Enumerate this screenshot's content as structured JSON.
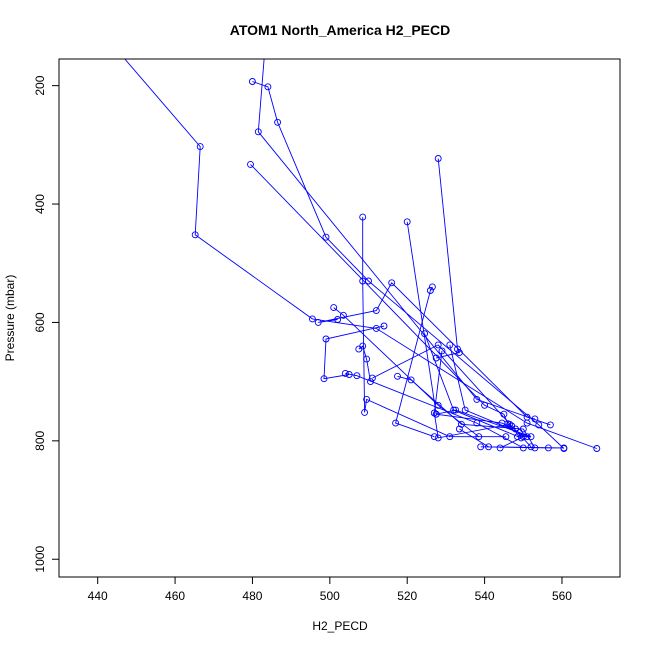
{
  "chart_data": {
    "type": "line",
    "title": "ATOM1 North_America H2_PECD",
    "xlabel": "H2_PECD",
    "ylabel": "Pressure (mbar)",
    "xlim": [
      430,
      575
    ],
    "ylim": [
      1030,
      155
    ],
    "y_reversed": true,
    "x_ticks": [
      440,
      460,
      480,
      500,
      520,
      540,
      560
    ],
    "y_ticks": [
      200,
      400,
      600,
      800,
      1000
    ],
    "grid": false,
    "line_color": "#0000ff",
    "series": [
      {
        "x": [
          447,
          466.5,
          465.2,
          495.5,
          512,
          551,
          569
        ],
        "y": [
          155,
          303,
          452,
          594,
          610,
          770,
          813
        ]
      },
      {
        "x": [
          480,
          484,
          486.5,
          499,
          510,
          554,
          560.5
        ],
        "y": [
          193,
          202,
          262,
          456,
          530,
          773,
          813
        ]
      },
      {
        "x": [
          483,
          481.5,
          538,
          557
        ],
        "y": [
          155,
          278,
          730,
          773
        ]
      },
      {
        "x": [
          479.5,
          540,
          545,
          546,
          550
        ],
        "y": [
          333,
          740,
          755,
          771,
          793
        ]
      },
      {
        "x": [
          508.5,
          508.5,
          509,
          509.5,
          531,
          545.5
        ],
        "y": [
          422,
          530,
          752,
          730,
          793,
          793
        ]
      },
      {
        "x": [
          520,
          527.5,
          544.5,
          548
        ],
        "y": [
          430,
          755,
          770,
          780
        ]
      },
      {
        "x": [
          528,
          533,
          533.5,
          527.5
        ],
        "y": [
          323,
          645,
          651,
          660
        ]
      },
      {
        "x": [
          507.5,
          508.5,
          509.5,
          510.5
        ],
        "y": [
          645,
          640,
          662,
          700
        ]
      },
      {
        "x": [
          501,
          503.5,
          528,
          538.5
        ],
        "y": [
          575,
          588,
          740,
          793
        ]
      },
      {
        "x": [
          502,
          497,
          512,
          516,
          551,
          553
        ],
        "y": [
          595,
          600,
          580,
          533,
          760,
          763
        ]
      },
      {
        "x": [
          526.5,
          526,
          517,
          527
        ],
        "y": [
          540,
          546,
          770,
          793
        ]
      },
      {
        "x": [
          514,
          499,
          498.5,
          505
        ],
        "y": [
          606,
          628,
          695,
          688
        ]
      },
      {
        "x": [
          504,
          507,
          538,
          550
        ],
        "y": [
          686,
          690,
          770,
          812
        ]
      },
      {
        "x": [
          511,
          528,
          547,
          552
        ],
        "y": [
          694,
          638,
          775,
          810
        ]
      },
      {
        "x": [
          517.5,
          521,
          534,
          550,
          553
        ],
        "y": [
          691,
          697,
          772,
          780,
          812
        ]
      },
      {
        "x": [
          524.5,
          532,
          549.5,
          544
        ],
        "y": [
          619,
          748,
          795,
          812
        ]
      },
      {
        "x": [
          531,
          535,
          549,
          551
        ],
        "y": [
          638,
          748,
          786,
          793
        ]
      },
      {
        "x": [
          529,
          527,
          528,
          546.5
        ],
        "y": [
          648,
          753,
          795,
          772
        ]
      },
      {
        "x": [
          539,
          556.5,
          560.5,
          541,
          533.5
        ],
        "y": [
          810,
          812,
          812,
          810,
          780
        ]
      },
      {
        "x": [
          527.5,
          532.5,
          552,
          548.5
        ],
        "y": [
          755,
          748,
          793,
          793
        ]
      }
    ]
  }
}
